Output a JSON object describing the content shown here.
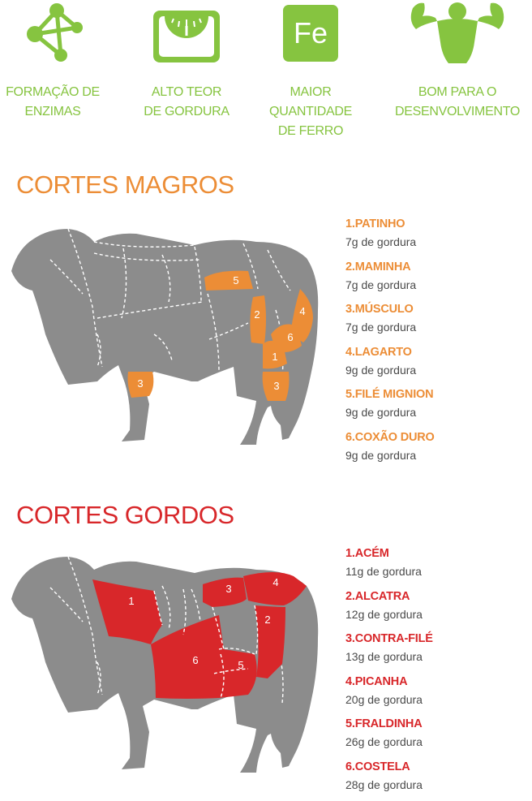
{
  "benefits": [
    {
      "icon": "molecule-icon",
      "label": "FORMAÇÃO DE\nENZIMAS"
    },
    {
      "icon": "scale-icon",
      "label": "ALTO TEOR\nDE GORDURA"
    },
    {
      "icon": "iron-element-icon",
      "icon_text": "Fe",
      "label": "MAIOR\nQUANTIDADE\nDE FERRO"
    },
    {
      "icon": "muscle-man-icon",
      "label": "BOM PARA O\nDESENVOLVIMENTO"
    }
  ],
  "lean": {
    "title": "CORTES MAGROS",
    "color": "#ec8d36",
    "cuts": [
      {
        "name": "1.PATINHO",
        "fat": "7g de gordura"
      },
      {
        "name": "2.MAMINHA",
        "fat": "7g de gordura"
      },
      {
        "name": "3.MÚSCULO",
        "fat": "7g de gordura"
      },
      {
        "name": "4.LAGARTO",
        "fat": "9g de gordura"
      },
      {
        "name": "5.FILÉ MIGNION",
        "fat": "9g de gordura"
      },
      {
        "name": "6.COXÃO DURO",
        "fat": "9g de gordura"
      }
    ],
    "map_labels": [
      "1",
      "2",
      "3",
      "3",
      "4",
      "5",
      "6"
    ]
  },
  "fatty": {
    "title": "CORTES GORDOS",
    "color": "#d8272a",
    "cuts": [
      {
        "name": "1.ACÉM",
        "fat": "11g de gordura"
      },
      {
        "name": "2.ALCATRA",
        "fat": "12g de gordura"
      },
      {
        "name": "3.CONTRA-FILÉ",
        "fat": "13g de gordura"
      },
      {
        "name": "4.PICANHA",
        "fat": "20g de gordura"
      },
      {
        "name": "5.FRALDINHA",
        "fat": "26g de gordura"
      },
      {
        "name": "6.COSTELA",
        "fat": "28g de gordura"
      }
    ],
    "map_labels": [
      "1",
      "2",
      "3",
      "4",
      "5",
      "6"
    ]
  },
  "colors": {
    "green": "#86c440",
    "bull_gray": "#8c8c8c",
    "lean": "#ec8d36",
    "fatty": "#d8272a"
  }
}
